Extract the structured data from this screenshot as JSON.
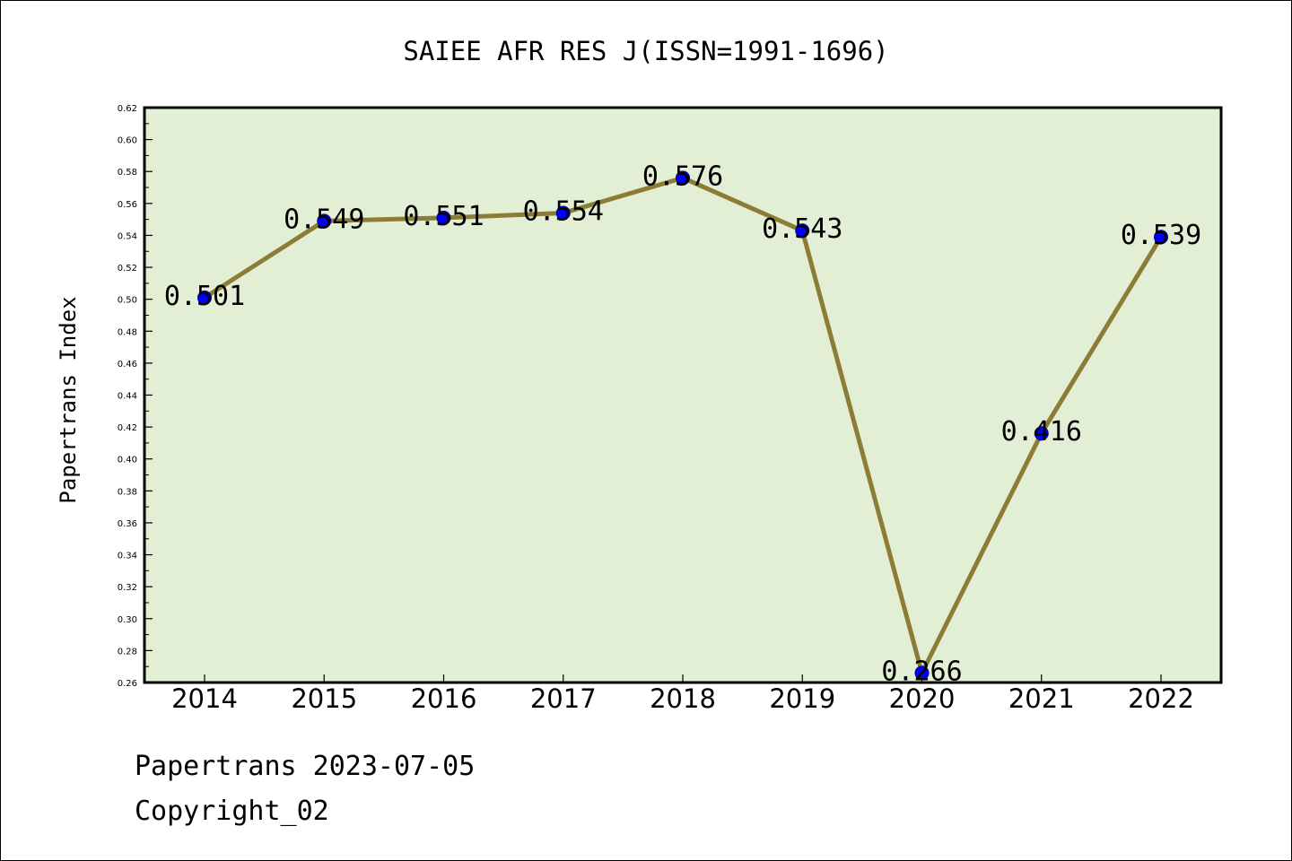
{
  "chart_data": {
    "type": "line",
    "title": "SAIEE AFR RES J(ISSN=1991-1696)",
    "xlabel": "",
    "ylabel": "Papertrans Index",
    "categories": [
      "2014",
      "2015",
      "2016",
      "2017",
      "2018",
      "2019",
      "2020",
      "2021",
      "2022"
    ],
    "values": [
      0.501,
      0.549,
      0.551,
      0.554,
      0.576,
      0.543,
      0.266,
      0.416,
      0.539
    ],
    "data_labels": [
      "0.501",
      "0.549",
      "0.551",
      "0.554",
      "0.576",
      "0.543",
      "0.266",
      "0.416",
      "0.539"
    ],
    "ylim": [
      0.26,
      0.62
    ],
    "yticks": [
      "0.26",
      "0.28",
      "0.30",
      "0.32",
      "0.34",
      "0.36",
      "0.38",
      "0.40",
      "0.42",
      "0.44",
      "0.46",
      "0.48",
      "0.50",
      "0.52",
      "0.54",
      "0.56",
      "0.58",
      "0.60",
      "0.62"
    ],
    "grid": false,
    "legend": "none",
    "colors": {
      "plot_background": "#e2efd5",
      "line": "#8b7d35",
      "marker": "#0000ff",
      "axes": "#000000"
    }
  },
  "footer": {
    "date_line": "Papertrans 2023-07-05",
    "copyright": "Copyright_02"
  }
}
